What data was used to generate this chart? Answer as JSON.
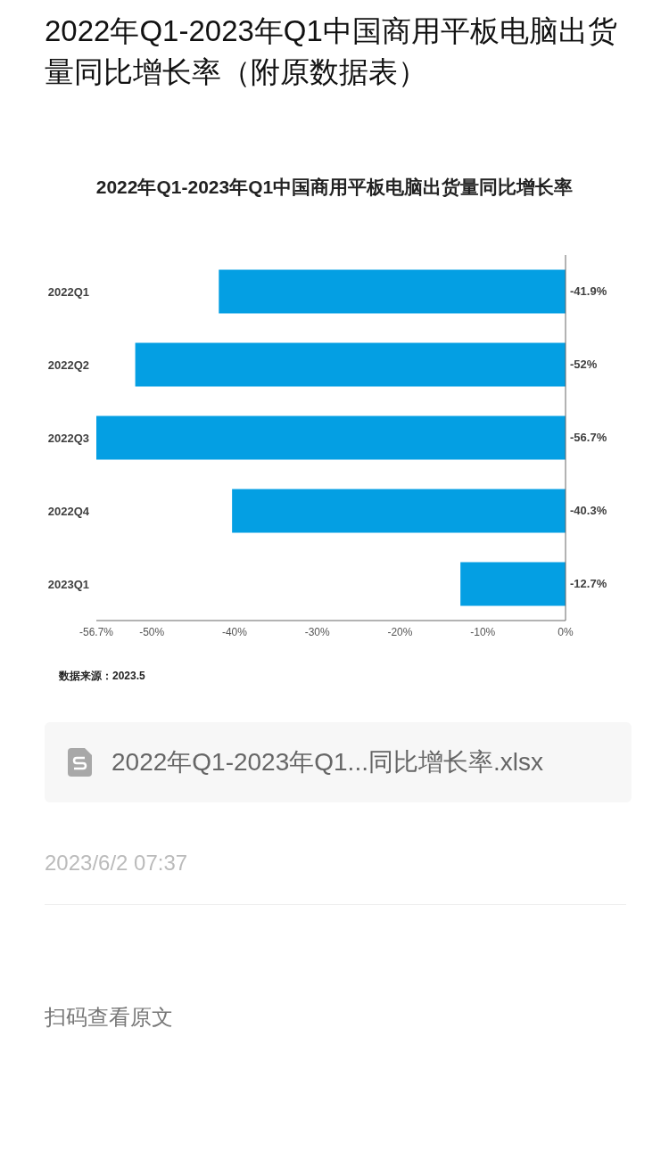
{
  "chart_data": {
    "type": "bar",
    "orientation": "horizontal",
    "title": "2022年Q1-2023年Q1中国商用平板电脑出货量同比增长率",
    "categories": [
      "2022Q1",
      "2022Q2",
      "2022Q3",
      "2022Q4",
      "2023Q1"
    ],
    "values": [
      -41.9,
      -52,
      -56.7,
      -40.3,
      -12.7
    ],
    "value_labels": [
      "-41.9%",
      "-52%",
      "-56.7%",
      "-40.3%",
      "-12.7%"
    ],
    "color": "#049fe3",
    "xlim": [
      -56.7,
      0
    ],
    "xticks": [
      {
        "value": -56.7,
        "label": "-56.7%"
      },
      {
        "value": -50,
        "label": "-50%"
      },
      {
        "value": -40,
        "label": "-40%"
      },
      {
        "value": -30,
        "label": "-30%"
      },
      {
        "value": -20,
        "label": "-20%"
      },
      {
        "value": -10,
        "label": "-10%"
      },
      {
        "value": 0,
        "label": "0%"
      }
    ],
    "grid": false,
    "legend": false,
    "annotations": [
      "2022年Q1-2023年Q1中国商用平板电脑出货量同比增长率（附原数据表）",
      "数据来源：2023.5",
      "2022年Q1-2023年Q1...同比增长率.xlsx",
      "2023/6/2 07:37",
      "扫码查看原文"
    ]
  }
}
